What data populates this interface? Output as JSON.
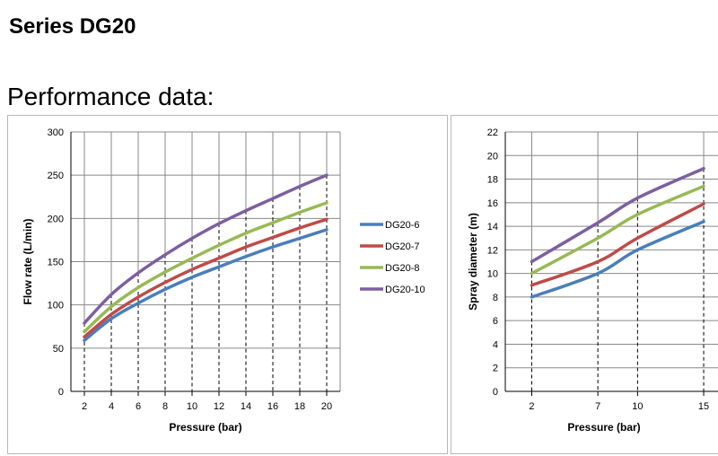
{
  "heading": "Series DG20",
  "subheading": "Performance data:",
  "colors": {
    "DG20-6": "#4a7ebb",
    "DG20-7": "#be4b48",
    "DG20-8": "#98b954",
    "DG20-10": "#7d5fa0",
    "grid": "#888888"
  },
  "chart_data": [
    {
      "type": "line",
      "xlabel": "Pressure (bar)",
      "ylabel": "Flow rate (L/min)",
      "x": [
        2,
        4,
        6,
        8,
        10,
        12,
        14,
        16,
        18,
        20
      ],
      "xlim": [
        1,
        21
      ],
      "ylim": [
        0,
        300
      ],
      "yticks": [
        0,
        50,
        100,
        150,
        200,
        250,
        300
      ],
      "grid": true,
      "legend_position": "right",
      "series": [
        {
          "name": "DG20-6",
          "values": [
            59,
            84,
            102,
            118,
            132,
            144,
            156,
            167,
            177,
            187
          ]
        },
        {
          "name": "DG20-7",
          "values": [
            63,
            89,
            109,
            126,
            141,
            154,
            167,
            178,
            189,
            199
          ]
        },
        {
          "name": "DG20-8",
          "values": [
            69,
            98,
            120,
            138,
            154,
            169,
            183,
            195,
            207,
            218
          ]
        },
        {
          "name": "DG20-10",
          "values": [
            79,
            112,
            137,
            158,
            177,
            194,
            209,
            223,
            237,
            250
          ]
        }
      ]
    },
    {
      "type": "line",
      "xlabel": "Pressure (bar)",
      "ylabel": "Spray diameter (m)",
      "x": [
        2,
        7,
        10,
        15
      ],
      "xlim": [
        0,
        19
      ],
      "ylim": [
        0,
        22
      ],
      "yticks": [
        0,
        2,
        4,
        6,
        8,
        10,
        12,
        14,
        16,
        18,
        20,
        22
      ],
      "grid": true,
      "series": [
        {
          "name": "DG20-6",
          "values": [
            8,
            10,
            12,
            14.4
          ]
        },
        {
          "name": "DG20-7",
          "values": [
            9,
            11,
            13,
            15.9
          ]
        },
        {
          "name": "DG20-8",
          "values": [
            10,
            13,
            15,
            17.4
          ]
        },
        {
          "name": "DG20-10",
          "values": [
            11,
            14.3,
            16.4,
            18.9
          ]
        }
      ]
    }
  ]
}
